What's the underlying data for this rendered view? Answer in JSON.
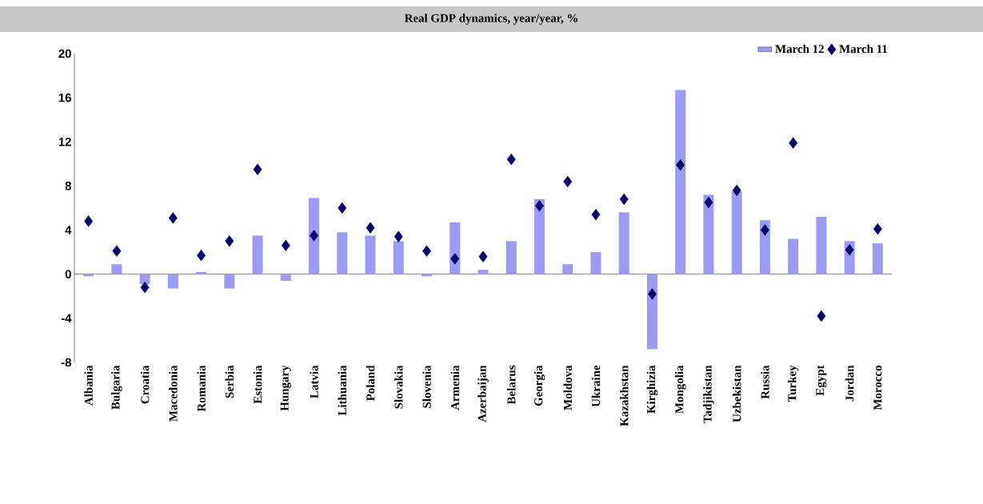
{
  "chart_data": {
    "type": "bar",
    "title": "Real GDP dynamics, year/year, %",
    "categories": [
      "Albania",
      "Bulgaria",
      "Croatia",
      "Macedonia",
      "Romania",
      "Serbia",
      "Estonia",
      "Hungary",
      "Latvia",
      "Lithuania",
      "Poland",
      "Slovakia",
      "Slovenia",
      "Armenia",
      "Azerbaijan",
      "Belarus",
      "Georgia",
      "Moldova",
      "Ukraine",
      "Kazakhstan",
      "Kirghizia",
      "Mongolia",
      "Tadjikistan",
      "Uzbekistan",
      "Russia",
      "Turkey",
      "Egypt",
      "Jordan",
      "Morocco"
    ],
    "series": [
      {
        "name": "March 12",
        "type": "bar",
        "color": "#9b9bf5",
        "values": [
          -0.2,
          0.9,
          -0.9,
          -1.3,
          0.2,
          -1.3,
          3.5,
          -0.6,
          6.9,
          3.8,
          3.5,
          3.0,
          -0.2,
          4.7,
          0.4,
          3.0,
          6.8,
          0.9,
          2.0,
          5.6,
          -6.8,
          16.7,
          7.2,
          7.5,
          4.9,
          3.2,
          5.2,
          3.0,
          2.8
        ]
      },
      {
        "name": "March 11",
        "type": "scatter",
        "color": "#00006e",
        "values": [
          4.8,
          2.1,
          -1.2,
          5.1,
          1.7,
          3.0,
          9.5,
          2.6,
          3.5,
          6.0,
          4.2,
          3.4,
          2.1,
          1.4,
          1.6,
          10.4,
          6.2,
          8.4,
          5.4,
          6.8,
          -1.8,
          9.9,
          6.5,
          7.6,
          4.0,
          11.9,
          -3.8,
          2.2,
          4.1
        ]
      }
    ],
    "ylim": [
      -8,
      20
    ],
    "yticks": [
      -8,
      -4,
      0,
      4,
      8,
      12,
      16,
      20
    ],
    "marker": "diamond",
    "legend": "top right"
  }
}
